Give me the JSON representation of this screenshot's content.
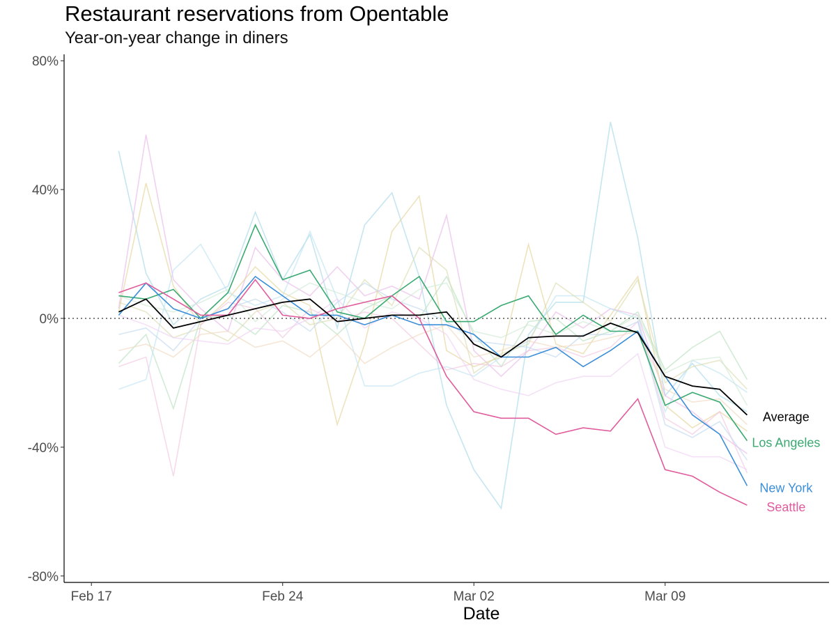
{
  "chart_data": {
    "type": "line",
    "title": "Restaurant reservations from Opentable",
    "subtitle": "Year-on-year change in diners",
    "xlabel": "Date",
    "ylabel": "",
    "x": [
      "2020-02-18",
      "2020-02-19",
      "2020-02-20",
      "2020-02-21",
      "2020-02-22",
      "2020-02-23",
      "2020-02-24",
      "2020-02-25",
      "2020-02-26",
      "2020-02-27",
      "2020-02-28",
      "2020-02-29",
      "2020-03-01",
      "2020-03-02",
      "2020-03-03",
      "2020-03-04",
      "2020-03-05",
      "2020-03-06",
      "2020-03-07",
      "2020-03-08",
      "2020-03-09",
      "2020-03-10",
      "2020-03-11",
      "2020-03-12"
    ],
    "xlim": [
      "2020-02-16",
      "2020-03-15"
    ],
    "ylim": [
      -0.82,
      0.82
    ],
    "y_scale": "percent",
    "x_ticks": [
      {
        "date": "2020-02-17",
        "label": "Feb 17"
      },
      {
        "date": "2020-02-24",
        "label": "Feb 24"
      },
      {
        "date": "2020-03-02",
        "label": "Mar 02"
      },
      {
        "date": "2020-03-09",
        "label": "Mar 09"
      }
    ],
    "y_ticks": [
      {
        "value": 0.8,
        "label": "80%"
      },
      {
        "value": 0.4,
        "label": "40%"
      },
      {
        "value": 0.0,
        "label": "0%"
      },
      {
        "value": -0.4,
        "label": "-40%"
      },
      {
        "value": -0.8,
        "label": "-80%"
      }
    ],
    "reference_line": {
      "value": 0,
      "style": "dotted"
    },
    "grid": false,
    "legend": "direct labels at line ends",
    "series": [
      {
        "name": "Average",
        "color": "#000000",
        "highlight": true,
        "values": [
          0.02,
          0.06,
          -0.03,
          -0.01,
          0.01,
          0.03,
          0.05,
          0.06,
          -0.01,
          0.0,
          0.01,
          0.01,
          0.02,
          -0.08,
          -0.12,
          -0.06,
          -0.055,
          -0.055,
          -0.015,
          -0.045,
          -0.18,
          -0.21,
          -0.22,
          -0.3
        ]
      },
      {
        "name": "Los Angeles",
        "color": "#3aaa72",
        "highlight": true,
        "values": [
          0.07,
          0.06,
          0.09,
          0.0,
          0.08,
          0.29,
          0.12,
          0.15,
          0.02,
          0.0,
          0.07,
          0.13,
          -0.01,
          -0.01,
          0.04,
          0.07,
          -0.05,
          0.01,
          -0.04,
          -0.04,
          -0.27,
          -0.23,
          -0.26,
          -0.38
        ]
      },
      {
        "name": "New York",
        "color": "#3b8ed8",
        "highlight": true,
        "values": [
          0.01,
          0.11,
          0.03,
          0.0,
          0.03,
          0.13,
          0.07,
          0.01,
          0.01,
          -0.02,
          0.01,
          -0.02,
          -0.02,
          -0.05,
          -0.12,
          -0.12,
          -0.09,
          -0.15,
          -0.1,
          -0.04,
          -0.18,
          -0.3,
          -0.36,
          -0.52
        ]
      },
      {
        "name": "Seattle",
        "color": "#e05c9c",
        "highlight": true,
        "values": [
          0.08,
          0.11,
          0.06,
          0.01,
          0.01,
          0.12,
          0.01,
          0.0,
          0.03,
          0.05,
          0.07,
          0.0,
          -0.18,
          -0.29,
          -0.31,
          -0.31,
          -0.36,
          -0.34,
          -0.35,
          -0.25,
          -0.47,
          -0.49,
          -0.54,
          -0.58
        ]
      },
      {
        "color": "#a6d8e8",
        "highlight": false,
        "values": [
          0.52,
          0.14,
          -0.02,
          0.06,
          0.1,
          0.33,
          0.12,
          0.26,
          -0.03,
          0.29,
          0.39,
          0.13,
          -0.27,
          -0.47,
          -0.59,
          -0.05,
          0.05,
          0.05,
          0.61,
          0.25,
          -0.24,
          -0.14,
          -0.24,
          -0.29
        ]
      },
      {
        "color": "#e8b8e8",
        "highlight": false,
        "values": [
          0.03,
          0.57,
          0.12,
          0.03,
          -0.04,
          0.22,
          0.12,
          0.07,
          0.16,
          0.07,
          0.1,
          0.06,
          0.32,
          -0.1,
          -0.18,
          -0.1,
          0.02,
          -0.03,
          0.03,
          0.01,
          -0.24,
          -0.29,
          -0.36,
          -0.42
        ]
      },
      {
        "color": "#e4d49a",
        "highlight": false,
        "values": [
          0.02,
          0.42,
          0.1,
          -0.02,
          0.06,
          0.16,
          0.08,
          0.04,
          -0.33,
          -0.08,
          0.27,
          0.38,
          -0.1,
          -0.15,
          -0.12,
          0.23,
          -0.08,
          -0.11,
          0.01,
          0.13,
          -0.27,
          -0.34,
          -0.29,
          -0.35
        ]
      },
      {
        "color": "#b8e0c0",
        "highlight": false,
        "values": [
          -0.14,
          -0.05,
          -0.28,
          0.0,
          0.01,
          -0.05,
          0.04,
          0.02,
          -0.05,
          0.03,
          0.07,
          0.0,
          0.13,
          -0.05,
          -0.15,
          -0.01,
          0.0,
          -0.07,
          -0.04,
          0.02,
          -0.16,
          -0.09,
          -0.04,
          -0.19
        ]
      },
      {
        "color": "#bfe3f2",
        "highlight": false,
        "values": [
          -0.22,
          -0.19,
          0.15,
          0.23,
          0.08,
          0.04,
          0.07,
          0.27,
          0.06,
          -0.21,
          -0.21,
          -0.17,
          -0.15,
          -0.18,
          -0.12,
          -0.07,
          0.07,
          0.07,
          0.03,
          0.0,
          -0.29,
          -0.13,
          -0.17,
          -0.23
        ]
      },
      {
        "color": "#f2c6de",
        "highlight": false,
        "values": [
          -0.15,
          -0.12,
          -0.49,
          -0.02,
          0.05,
          0.03,
          -0.06,
          0.03,
          -0.01,
          0.02,
          0.0,
          -0.08,
          -0.16,
          -0.14,
          -0.15,
          -0.1,
          -0.09,
          -0.12,
          -0.09,
          -0.01,
          -0.31,
          -0.36,
          -0.29,
          -0.48
        ]
      },
      {
        "color": "#dcdcb0",
        "highlight": false,
        "values": [
          0.05,
          0.02,
          -0.06,
          -0.03,
          -0.07,
          0.02,
          0.05,
          -0.02,
          0.0,
          0.12,
          0.04,
          0.22,
          0.15,
          -0.17,
          -0.11,
          -0.08,
          0.11,
          0.05,
          -0.01,
          0.12,
          -0.2,
          -0.15,
          -0.13,
          -0.22
        ]
      },
      {
        "color": "#c0d8f0",
        "highlight": false,
        "values": [
          -0.05,
          -0.03,
          -0.1,
          0.0,
          0.03,
          0.06,
          0.02,
          -0.04,
          0.05,
          0.11,
          0.06,
          0.03,
          -0.01,
          -0.07,
          -0.08,
          -0.09,
          -0.12,
          -0.05,
          -0.05,
          -0.01,
          -0.33,
          -0.37,
          -0.32,
          -0.44
        ]
      },
      {
        "color": "#eed0f2",
        "highlight": false,
        "values": [
          0.01,
          -0.02,
          -0.06,
          -0.07,
          -0.08,
          -0.03,
          -0.04,
          0.0,
          0.06,
          -0.03,
          0.02,
          0.0,
          -0.05,
          -0.19,
          -0.22,
          -0.24,
          -0.2,
          -0.18,
          -0.18,
          -0.11,
          -0.4,
          -0.43,
          -0.43,
          -0.47
        ]
      },
      {
        "color": "#cfe9d6",
        "highlight": false,
        "values": [
          0.07,
          0.04,
          0.02,
          0.05,
          0.09,
          -0.01,
          0.06,
          0.11,
          0.08,
          0.05,
          0.03,
          0.09,
          0.11,
          -0.04,
          -0.06,
          -0.02,
          -0.05,
          -0.01,
          -0.04,
          0.01,
          -0.17,
          -0.13,
          -0.12,
          -0.27
        ]
      },
      {
        "color": "#f0d8c0",
        "highlight": false,
        "values": [
          -0.1,
          -0.08,
          -0.12,
          -0.05,
          -0.04,
          -0.09,
          -0.07,
          -0.12,
          -0.05,
          -0.14,
          -0.09,
          -0.05,
          -0.02,
          -0.12,
          -0.1,
          -0.07,
          -0.09,
          -0.08,
          -0.06,
          -0.04,
          -0.22,
          -0.26,
          -0.25,
          -0.33
        ]
      }
    ],
    "end_labels": [
      {
        "text": "Average",
        "color": "#000000"
      },
      {
        "text": "Los Angeles",
        "color": "#3aaa72"
      },
      {
        "text": "New York",
        "color": "#3b8ed8"
      },
      {
        "text": "Seattle",
        "color": "#e05c9c"
      }
    ]
  }
}
